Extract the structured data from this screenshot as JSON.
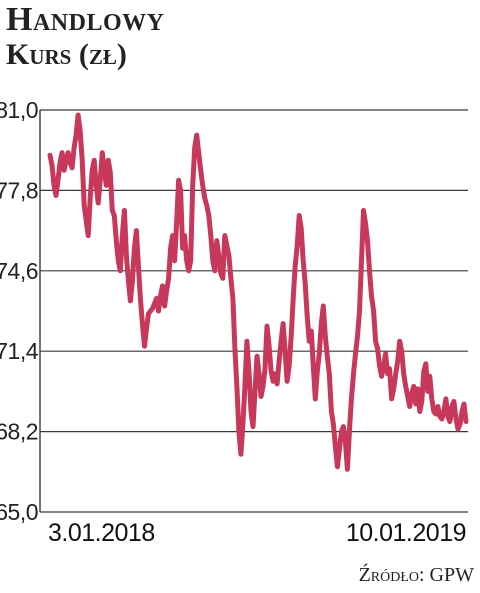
{
  "header": {
    "title": "Handlowy",
    "subtitle": "Kurs (zł)"
  },
  "footer": {
    "source": "Źródło: GPW"
  },
  "colors": {
    "line": "#c8385a",
    "grid": "#3a3a3a",
    "text": "#222222"
  },
  "chart_data": {
    "type": "line",
    "title": "Handlowy",
    "ylabel": "Kurs (zł)",
    "xlabel": "",
    "ylim": [
      65.0,
      81.0
    ],
    "yticks": [
      81.0,
      77.8,
      74.6,
      71.4,
      68.2,
      65.0
    ],
    "ytick_labels": [
      "81,0",
      "77,8",
      "74,6",
      "71,4",
      "68,2",
      "65,0"
    ],
    "xtick_labels": [
      "3.01.2018",
      "10.01.2019"
    ],
    "grid": true,
    "legend": "none",
    "series": [
      {
        "values": [
          79.2,
          78.8,
          78.0,
          77.6,
          78.2,
          78.9,
          79.3,
          78.6,
          79.0,
          79.3,
          78.9,
          78.7,
          79.5,
          80.0,
          80.8,
          80.2,
          79.0,
          77.2,
          76.6,
          76.0,
          77.5,
          78.6,
          79.0,
          78.0,
          77.3,
          78.2,
          79.3,
          78.6,
          78.0,
          79.0,
          78.5,
          77.0,
          76.8,
          75.8,
          75.0,
          74.6,
          76.0,
          77.0,
          75.2,
          74.2,
          73.4,
          74.2,
          75.5,
          76.2,
          74.8,
          73.5,
          72.5,
          71.6,
          72.3,
          72.9,
          73.0,
          73.1,
          73.3,
          73.5,
          73.0,
          73.6,
          74.0,
          73.2,
          73.8,
          74.3,
          75.5,
          76.0,
          75.0,
          76.5,
          78.2,
          77.8,
          75.5,
          76.0,
          75.0,
          74.6,
          75.0,
          78.0,
          79.5,
          80.0,
          79.3,
          78.6,
          78.0,
          77.5,
          77.2,
          76.8,
          76.0,
          75.0,
          74.6,
          75.8,
          75.2,
          74.5,
          74.3,
          76.0,
          75.6,
          75.2,
          74.3,
          73.5,
          71.5,
          70.0,
          68.2,
          67.3,
          68.5,
          70.0,
          71.8,
          70.6,
          69.0,
          68.4,
          69.8,
          71.2,
          70.5,
          69.6,
          70.0,
          70.7,
          72.4,
          71.6,
          70.6,
          70.2,
          70.5,
          70.1,
          71.0,
          71.8,
          72.5,
          71.4,
          70.2,
          70.8,
          72.0,
          73.5,
          74.8,
          75.6,
          76.8,
          76.3,
          75.0,
          74.1,
          72.8,
          71.8,
          72.2,
          70.8,
          69.5,
          70.6,
          71.3,
          72.5,
          73.2,
          72.0,
          71.2,
          70.5,
          69.0,
          68.5,
          67.6,
          66.8,
          67.5,
          68.2,
          68.4,
          67.8,
          66.7,
          68.2,
          69.5,
          70.5,
          71.3,
          72.0,
          73.0,
          75.0,
          77.0,
          76.5,
          75.8,
          74.6,
          73.6,
          73.0,
          71.8,
          71.5,
          70.8,
          70.4,
          70.8,
          71.3,
          70.5,
          70.7,
          69.5,
          69.9,
          70.5,
          71.0,
          71.8,
          71.4,
          70.5,
          70.0,
          69.6,
          69.2,
          69.7,
          70.0,
          69.3,
          69.9,
          69.0,
          69.4,
          70.6,
          70.9,
          69.8,
          70.4,
          69.5,
          69.0,
          68.9,
          69.2,
          68.8,
          68.7,
          69.0,
          69.5,
          68.8,
          68.6,
          69.2,
          69.4,
          68.7,
          68.3,
          68.5,
          69.0,
          69.3,
          68.6
        ]
      }
    ]
  }
}
